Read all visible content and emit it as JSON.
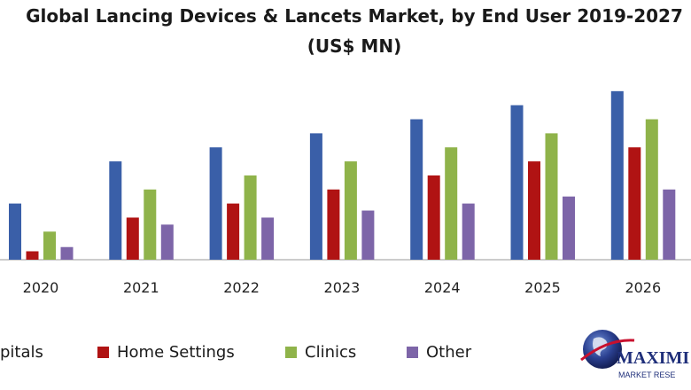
{
  "chart_data": {
    "type": "bar",
    "title_line1": "Global Lancing Devices & Lancets Market, by End User 2019-2027",
    "title_line2": "(US$ MN)",
    "categories": [
      "2020",
      "2021",
      "2022",
      "2023",
      "2024",
      "2025",
      "2026"
    ],
    "series": [
      {
        "name": "Hospitals",
        "legend_visible": "pitals",
        "color": "#3a5fa8",
        "values": [
          40,
          70,
          80,
          90,
          100,
          110,
          120
        ]
      },
      {
        "name": "Home Settings",
        "color": "#b01313",
        "values": [
          6,
          30,
          40,
          50,
          60,
          70,
          80
        ]
      },
      {
        "name": "Clinics",
        "color": "#8fb34a",
        "values": [
          20,
          50,
          60,
          70,
          80,
          90,
          100
        ]
      },
      {
        "name": "Other",
        "color": "#7d65a8",
        "values": [
          9,
          25,
          30,
          35,
          40,
          45,
          50
        ]
      }
    ],
    "ylim": [
      0,
      130
    ],
    "grid": false,
    "legend_position": "bottom"
  },
  "logo": {
    "text": "MAXIMI",
    "subtext": "MARKET RESE"
  }
}
